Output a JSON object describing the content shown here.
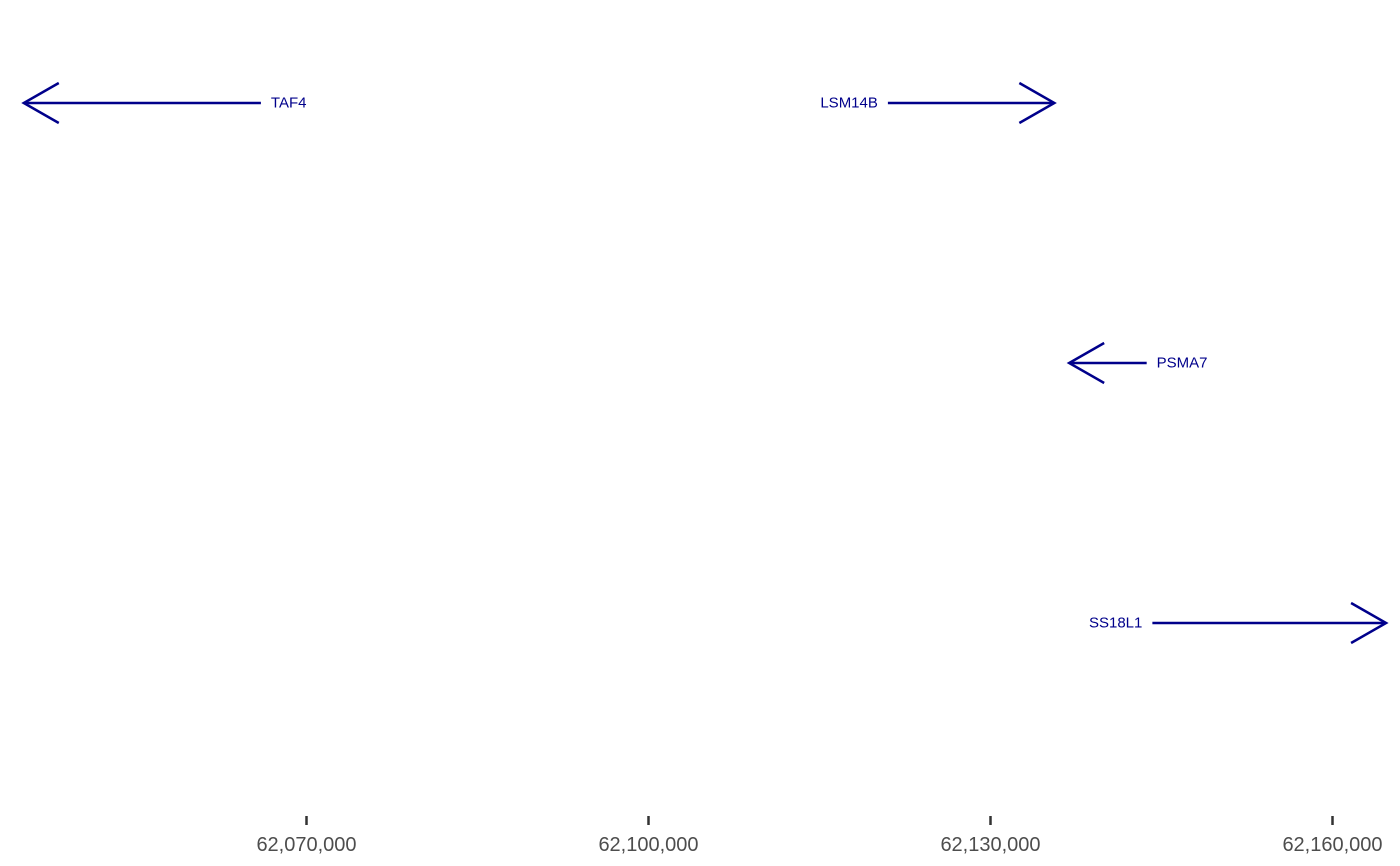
{
  "chart_data": {
    "type": "gene-track",
    "xlabel": "",
    "ylabel": "",
    "xlim": [
      62045144,
      62163000
    ],
    "x_ticks": [
      {
        "value": 62070000,
        "label": "62,070,000"
      },
      {
        "value": 62100000,
        "label": "62,100,000"
      },
      {
        "value": 62130000,
        "label": "62,130,000"
      },
      {
        "value": 62160000,
        "label": "62,160,000"
      }
    ],
    "genes": [
      {
        "name": "TAF4",
        "start": 62045200,
        "end": 62066000,
        "strand": "-",
        "row": 1
      },
      {
        "name": "LSM14B",
        "start": 62121000,
        "end": 62135600,
        "strand": "+",
        "row": 1
      },
      {
        "name": "PSMA7",
        "start": 62136900,
        "end": 62143700,
        "strand": "-",
        "row": 2
      },
      {
        "name": "SS18L1",
        "start": 62144200,
        "end": 62164700,
        "strand": "+",
        "row": 3
      }
    ],
    "grid": false,
    "legend": "none"
  },
  "colors": {
    "gene": "#00008B",
    "tick": "#333333",
    "tick_label": "#4d4d4d",
    "background": "#ffffff"
  }
}
